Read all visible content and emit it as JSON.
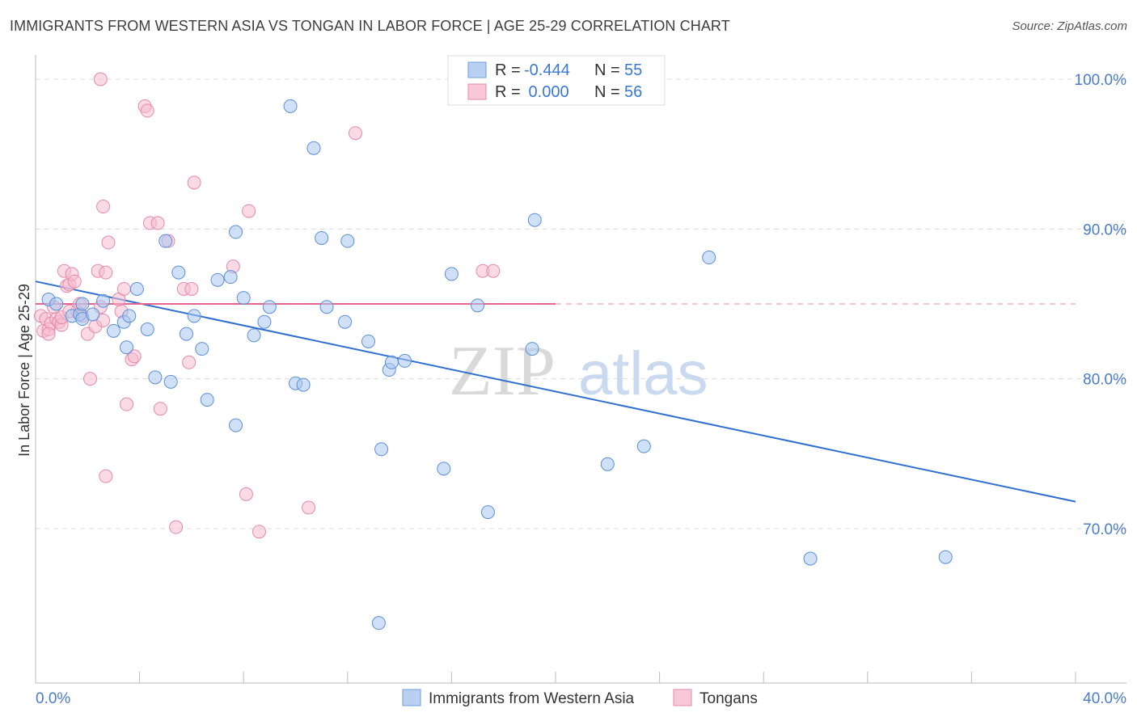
{
  "title": "IMMIGRANTS FROM WESTERN ASIA VS TONGAN IN LABOR FORCE | AGE 25-29 CORRELATION CHART",
  "source": "Source: ZipAtlas.com",
  "watermark": {
    "zip": "ZIP",
    "atlas": "atlas"
  },
  "colors": {
    "blue_fill": "#a9c6ef",
    "blue_stroke": "#5b8fd9",
    "blue_line": "#2f6fd0",
    "pink_fill": "#f5bcd0",
    "pink_stroke": "#e58aa8",
    "pink_line": "#e8648e",
    "grid": "#dddddd",
    "label": "#4a7cc7"
  },
  "legend": {
    "rows": [
      {
        "r_label": "R =",
        "r_value": "-0.444",
        "n_label": "N =",
        "n_value": "55"
      },
      {
        "r_label": "R =",
        "r_value": " 0.000",
        "n_label": "N =",
        "n_value": "56"
      }
    ]
  },
  "chart_data": {
    "type": "scatter",
    "title": "IMMIGRANTS FROM WESTERN ASIA VS TONGAN IN LABOR FORCE | AGE 25-29 CORRELATION CHART",
    "xlabel": "",
    "ylabel": "In Labor Force | Age 25-29",
    "xlim": [
      0,
      40
    ],
    "ylim": [
      61.5,
      101.5
    ],
    "x_tick_labels": [
      "0.0%",
      "40.0%"
    ],
    "y_ticks": [
      70,
      80,
      90,
      100
    ],
    "y_tick_labels": [
      "70.0%",
      "80.0%",
      "90.0%",
      "100.0%"
    ],
    "grid": true,
    "legend_position": "top-center",
    "series": [
      {
        "name": "Immigrants from Western Asia",
        "R": -0.444,
        "N": 55,
        "trend": {
          "x": [
            0,
            40
          ],
          "y": [
            86.5,
            71.8
          ]
        },
        "points": [
          [
            0.5,
            85.3
          ],
          [
            0.8,
            85.0
          ],
          [
            1.4,
            84.2
          ],
          [
            1.7,
            84.3
          ],
          [
            1.8,
            85.0
          ],
          [
            1.8,
            84.0
          ],
          [
            2.6,
            85.2
          ],
          [
            3.0,
            83.2
          ],
          [
            3.4,
            83.8
          ],
          [
            3.6,
            84.2
          ],
          [
            3.9,
            86.0
          ],
          [
            4.3,
            83.3
          ],
          [
            4.6,
            80.1
          ],
          [
            5.0,
            89.2
          ],
          [
            5.2,
            79.8
          ],
          [
            5.5,
            87.1
          ],
          [
            5.8,
            83.0
          ],
          [
            6.1,
            84.2
          ],
          [
            6.4,
            82.0
          ],
          [
            6.6,
            78.6
          ],
          [
            7.0,
            86.6
          ],
          [
            7.5,
            86.8
          ],
          [
            7.7,
            76.9
          ],
          [
            7.7,
            89.8
          ],
          [
            8.0,
            85.4
          ],
          [
            8.4,
            82.9
          ],
          [
            8.8,
            83.8
          ],
          [
            9.0,
            84.8
          ],
          [
            9.8,
            98.2
          ],
          [
            10.0,
            79.7
          ],
          [
            10.3,
            79.6
          ],
          [
            10.7,
            95.4
          ],
          [
            11.0,
            89.4
          ],
          [
            11.2,
            84.8
          ],
          [
            11.9,
            83.8
          ],
          [
            12.0,
            89.2
          ],
          [
            12.8,
            82.5
          ],
          [
            13.3,
            75.3
          ],
          [
            13.6,
            80.6
          ],
          [
            13.7,
            81.1
          ],
          [
            14.2,
            81.2
          ],
          [
            15.7,
            74.0
          ],
          [
            16.0,
            87.0
          ],
          [
            17.0,
            84.9
          ],
          [
            17.4,
            71.1
          ],
          [
            19.1,
            82.0
          ],
          [
            19.2,
            90.6
          ],
          [
            22.0,
            74.3
          ],
          [
            23.4,
            75.5
          ],
          [
            25.9,
            88.1
          ],
          [
            29.8,
            68.0
          ],
          [
            35.0,
            68.1
          ],
          [
            13.2,
            63.7
          ],
          [
            3.5,
            82.1
          ],
          [
            2.2,
            84.3
          ]
        ]
      },
      {
        "name": "Tongans",
        "R": 0.0,
        "N": 56,
        "trend": {
          "x": [
            0,
            20
          ],
          "y": [
            85.0,
            85.0
          ],
          "dashed_x": [
            20,
            40
          ]
        },
        "points": [
          [
            0.2,
            84.2
          ],
          [
            0.3,
            83.2
          ],
          [
            0.4,
            84.0
          ],
          [
            0.5,
            83.3
          ],
          [
            0.6,
            83.7
          ],
          [
            0.7,
            84.8
          ],
          [
            0.8,
            84.0
          ],
          [
            0.9,
            83.8
          ],
          [
            1.0,
            83.6
          ],
          [
            1.0,
            84.1
          ],
          [
            1.1,
            87.2
          ],
          [
            1.2,
            86.2
          ],
          [
            1.3,
            86.3
          ],
          [
            1.4,
            87.0
          ],
          [
            1.5,
            86.5
          ],
          [
            1.6,
            84.5
          ],
          [
            1.7,
            85.0
          ],
          [
            1.8,
            84.2
          ],
          [
            2.0,
            83.0
          ],
          [
            2.1,
            80.0
          ],
          [
            2.3,
            83.5
          ],
          [
            2.4,
            87.2
          ],
          [
            2.5,
            84.8
          ],
          [
            2.6,
            83.9
          ],
          [
            2.6,
            91.5
          ],
          [
            2.7,
            73.5
          ],
          [
            2.7,
            87.1
          ],
          [
            2.8,
            89.1
          ],
          [
            3.2,
            85.3
          ],
          [
            3.3,
            84.5
          ],
          [
            3.4,
            86.0
          ],
          [
            3.5,
            78.3
          ],
          [
            3.7,
            81.3
          ],
          [
            3.8,
            81.5
          ],
          [
            4.2,
            98.2
          ],
          [
            4.3,
            97.9
          ],
          [
            4.4,
            90.4
          ],
          [
            4.7,
            90.4
          ],
          [
            4.8,
            78.0
          ],
          [
            5.1,
            89.2
          ],
          [
            5.4,
            70.1
          ],
          [
            5.7,
            86.0
          ],
          [
            5.9,
            81.1
          ],
          [
            6.0,
            86.0
          ],
          [
            6.1,
            93.1
          ],
          [
            7.6,
            87.5
          ],
          [
            8.1,
            72.3
          ],
          [
            8.2,
            91.2
          ],
          [
            8.6,
            69.8
          ],
          [
            10.5,
            71.4
          ],
          [
            12.3,
            96.4
          ],
          [
            17.2,
            87.2
          ],
          [
            17.6,
            87.2
          ],
          [
            2.5,
            100.0
          ],
          [
            0.5,
            83.0
          ],
          [
            1.3,
            84.5
          ]
        ]
      }
    ]
  },
  "bottom_legend": [
    "Immigrants from Western Asia",
    "Tongans"
  ]
}
